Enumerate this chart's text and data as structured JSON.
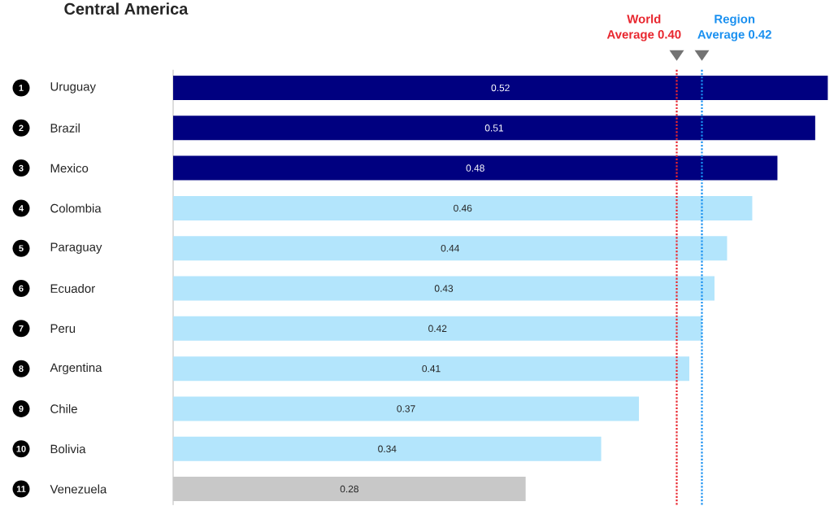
{
  "chart_data": {
    "type": "bar",
    "orientation": "horizontal",
    "title": "Central America",
    "categories": [
      "Uruguay",
      "Brazil",
      "Mexico",
      "Colombia",
      "Paraguay",
      "Ecuador",
      "Peru",
      "Argentina",
      "Chile",
      "Bolivia",
      "Venezuela"
    ],
    "values": [
      0.52,
      0.51,
      0.48,
      0.46,
      0.44,
      0.43,
      0.42,
      0.41,
      0.37,
      0.34,
      0.28
    ],
    "colors": [
      "#000080",
      "#000080",
      "#000080",
      "#b3e5fc",
      "#b3e5fc",
      "#b3e5fc",
      "#b3e5fc",
      "#b3e5fc",
      "#b3e5fc",
      "#b3e5fc",
      "#c8c8c8"
    ],
    "data_labels": true,
    "ref_lines": [
      {
        "axis": "x",
        "value": 0.4,
        "label": "World Average 0.40",
        "color": "#e8262e",
        "line_style": "dotted"
      },
      {
        "axis": "x",
        "value": 0.42,
        "label": "Region Average 0.42",
        "color": "#1a90f0",
        "line_style": "dotted"
      }
    ],
    "annotations": [
      "1",
      "2",
      "3",
      "4",
      "5",
      "6",
      "7",
      "8",
      "9",
      "10",
      "11"
    ]
  }
}
